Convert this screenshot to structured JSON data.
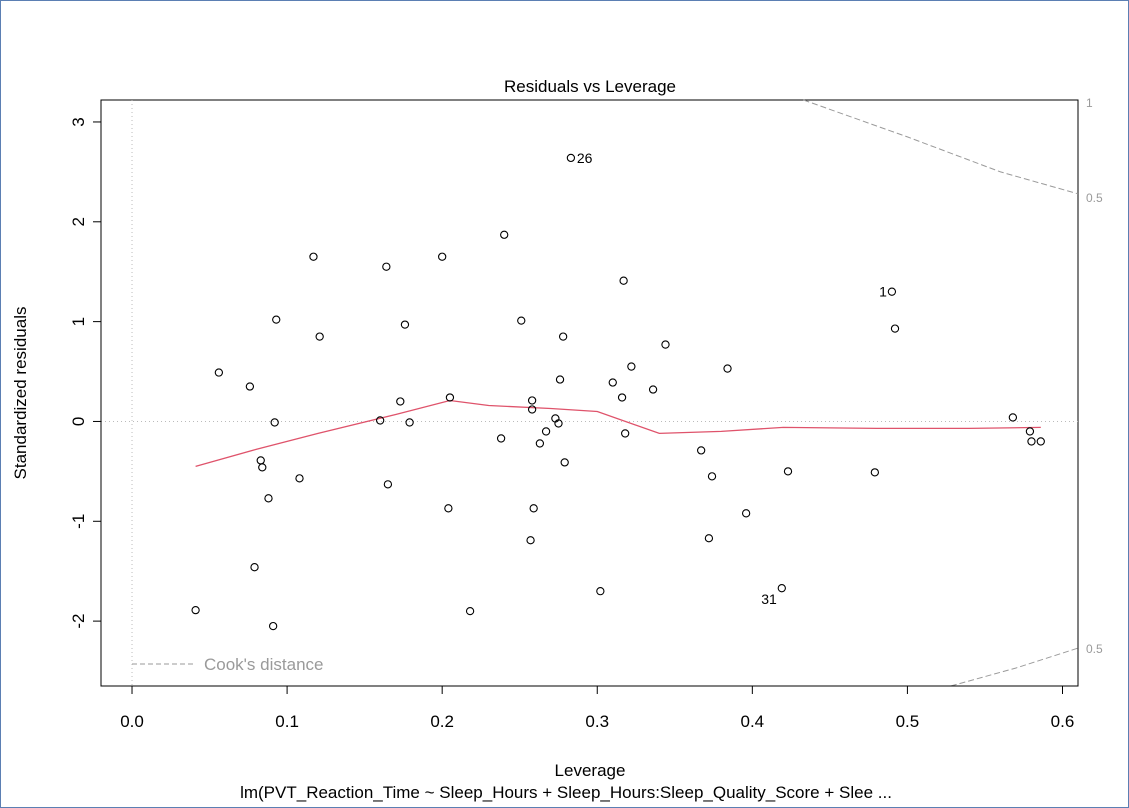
{
  "chart_data": {
    "type": "scatter",
    "title": "Residuals vs Leverage",
    "xlabel": "Leverage",
    "ylabel": "Standardized residuals",
    "subtitle": "lm(PVT_Reaction_Time ~ Sleep_Hours + Sleep_Hours:Sleep_Quality_Score + Slee ...",
    "xlim": [
      -0.02,
      0.61
    ],
    "ylim": [
      -2.65,
      3.22
    ],
    "x_ticks": [
      "0.0",
      "0.1",
      "0.2",
      "0.3",
      "0.4",
      "0.5",
      "0.6"
    ],
    "y_ticks": [
      "-2",
      "-1",
      "0",
      "1",
      "2",
      "3"
    ],
    "grid": false,
    "legend": {
      "label": "Cook's distance",
      "position": "bottom-left"
    },
    "cooks_contour_labels": [
      "1",
      "0.5",
      "0.5"
    ],
    "points": [
      {
        "x": 0.041,
        "y": -1.89
      },
      {
        "x": 0.056,
        "y": 0.49
      },
      {
        "x": 0.076,
        "y": 0.35
      },
      {
        "x": 0.079,
        "y": -1.46
      },
      {
        "x": 0.083,
        "y": -0.39
      },
      {
        "x": 0.084,
        "y": -0.46
      },
      {
        "x": 0.088,
        "y": -0.77
      },
      {
        "x": 0.091,
        "y": -2.05
      },
      {
        "x": 0.092,
        "y": -0.01
      },
      {
        "x": 0.093,
        "y": 1.02
      },
      {
        "x": 0.108,
        "y": -0.57
      },
      {
        "x": 0.117,
        "y": 1.65
      },
      {
        "x": 0.121,
        "y": 0.85
      },
      {
        "x": 0.16,
        "y": 0.01
      },
      {
        "x": 0.164,
        "y": 1.55
      },
      {
        "x": 0.165,
        "y": -0.63
      },
      {
        "x": 0.173,
        "y": 0.2
      },
      {
        "x": 0.176,
        "y": 0.97
      },
      {
        "x": 0.179,
        "y": -0.01
      },
      {
        "x": 0.2,
        "y": 1.65
      },
      {
        "x": 0.204,
        "y": -0.87
      },
      {
        "x": 0.205,
        "y": 0.24
      },
      {
        "x": 0.218,
        "y": -1.9
      },
      {
        "x": 0.238,
        "y": -0.17
      },
      {
        "x": 0.24,
        "y": 1.87
      },
      {
        "x": 0.251,
        "y": 1.01
      },
      {
        "x": 0.257,
        "y": -1.19
      },
      {
        "x": 0.258,
        "y": 0.21
      },
      {
        "x": 0.258,
        "y": 0.12
      },
      {
        "x": 0.259,
        "y": -0.87
      },
      {
        "x": 0.263,
        "y": -0.22
      },
      {
        "x": 0.267,
        "y": -0.1
      },
      {
        "x": 0.273,
        "y": 0.03
      },
      {
        "x": 0.275,
        "y": -0.02
      },
      {
        "x": 0.276,
        "y": 0.42
      },
      {
        "x": 0.278,
        "y": 0.85
      },
      {
        "x": 0.279,
        "y": -0.41
      },
      {
        "x": 0.283,
        "y": 2.64,
        "label": "26"
      },
      {
        "x": 0.302,
        "y": -1.7
      },
      {
        "x": 0.31,
        "y": 0.39
      },
      {
        "x": 0.316,
        "y": 0.24
      },
      {
        "x": 0.317,
        "y": 1.41
      },
      {
        "x": 0.318,
        "y": -0.12
      },
      {
        "x": 0.322,
        "y": 0.55
      },
      {
        "x": 0.336,
        "y": 0.32
      },
      {
        "x": 0.344,
        "y": 0.77
      },
      {
        "x": 0.367,
        "y": -0.29
      },
      {
        "x": 0.372,
        "y": -1.17
      },
      {
        "x": 0.374,
        "y": -0.55
      },
      {
        "x": 0.384,
        "y": 0.53
      },
      {
        "x": 0.396,
        "y": -0.92
      },
      {
        "x": 0.419,
        "y": -1.67,
        "label": "31"
      },
      {
        "x": 0.423,
        "y": -0.5
      },
      {
        "x": 0.479,
        "y": -0.51
      },
      {
        "x": 0.49,
        "y": 1.3,
        "label": "1"
      },
      {
        "x": 0.492,
        "y": 0.93
      },
      {
        "x": 0.568,
        "y": 0.04
      },
      {
        "x": 0.579,
        "y": -0.1
      },
      {
        "x": 0.58,
        "y": -0.2
      },
      {
        "x": 0.586,
        "y": -0.2
      }
    ],
    "smooth_line": [
      {
        "x": 0.041,
        "y": -0.45
      },
      {
        "x": 0.08,
        "y": -0.28
      },
      {
        "x": 0.12,
        "y": -0.12
      },
      {
        "x": 0.17,
        "y": 0.07
      },
      {
        "x": 0.205,
        "y": 0.21
      },
      {
        "x": 0.23,
        "y": 0.16
      },
      {
        "x": 0.27,
        "y": 0.13
      },
      {
        "x": 0.3,
        "y": 0.1
      },
      {
        "x": 0.34,
        "y": -0.12
      },
      {
        "x": 0.38,
        "y": -0.1
      },
      {
        "x": 0.42,
        "y": -0.06
      },
      {
        "x": 0.48,
        "y": -0.07
      },
      {
        "x": 0.54,
        "y": -0.07
      },
      {
        "x": 0.586,
        "y": -0.06
      }
    ],
    "cooks_upper": [
      {
        "x": 0.433,
        "y": 3.22
      },
      {
        "x": 0.5,
        "y": 2.85
      },
      {
        "x": 0.56,
        "y": 2.5
      },
      {
        "x": 0.61,
        "y": 2.28
      }
    ],
    "cooks_lower": [
      {
        "x": 0.528,
        "y": -2.65
      },
      {
        "x": 0.57,
        "y": -2.47
      },
      {
        "x": 0.61,
        "y": -2.27
      }
    ],
    "colors": {
      "points": "#000000",
      "smooth": "#df536b",
      "cooks": "#9a9a9a",
      "ref_lines": "#bbbbbb"
    }
  }
}
